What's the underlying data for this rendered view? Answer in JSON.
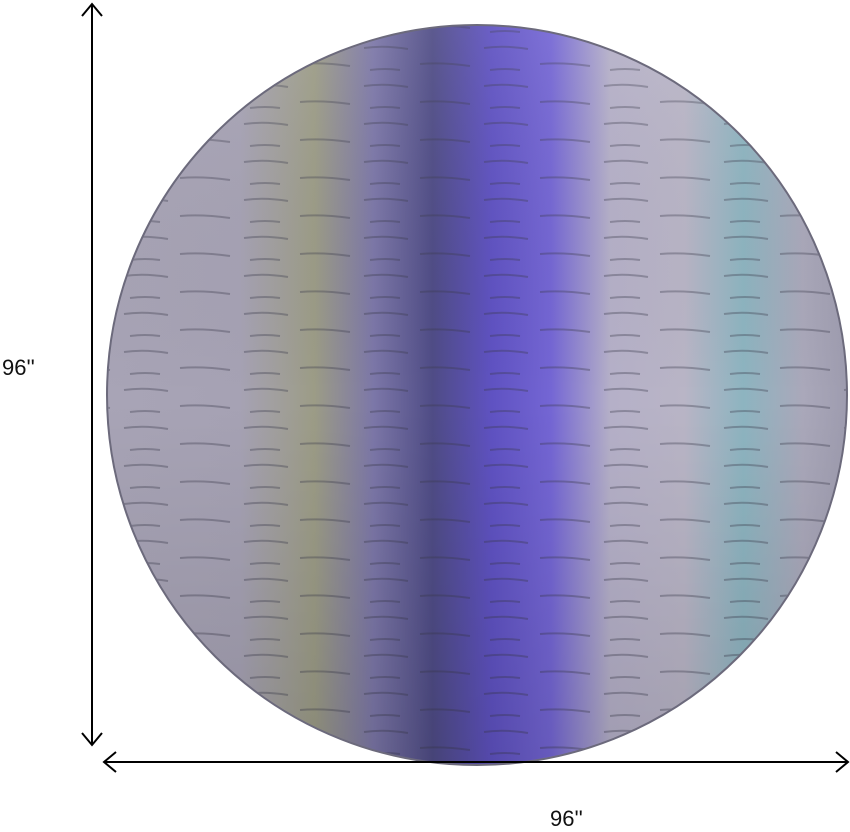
{
  "dimensions": {
    "height": "96''",
    "width": "96''"
  }
}
